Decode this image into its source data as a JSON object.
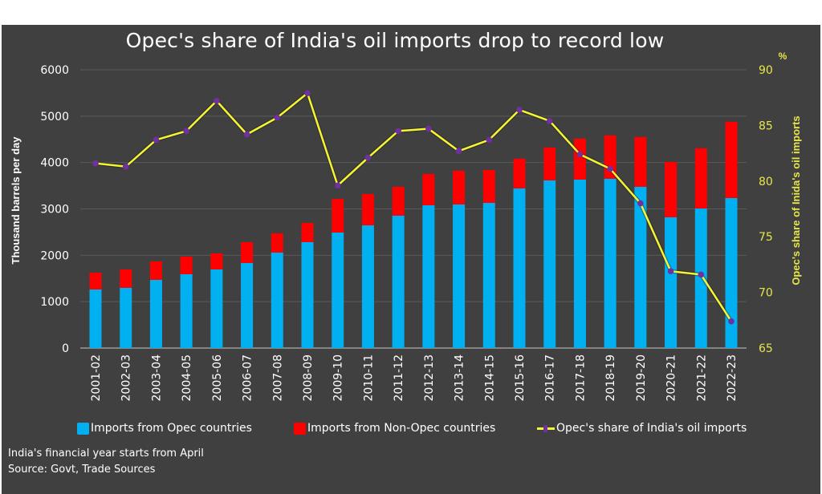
{
  "chart_data": {
    "type": "bar+line",
    "title": "Opec's share of India's oil imports drop to record low",
    "categories": [
      "2001-02",
      "2002-03",
      "2003-04",
      "2004-05",
      "2005-06",
      "2006-07",
      "2007-08",
      "2008-09",
      "2009-10",
      "2010-11",
      "2011-12",
      "2012-13",
      "2013-14",
      "2014-15",
      "2015-16",
      "2016-17",
      "2017-18",
      "2018-19",
      "2019-20",
      "2020-21",
      "2021-22",
      "2022-23"
    ],
    "series": [
      {
        "name": "Imports from Opec countries",
        "type": "bar",
        "stack": "imports",
        "axis": "left",
        "color": "#00b0f0",
        "values": [
          1263,
          1298,
          1471,
          1592,
          1696,
          1834,
          2059,
          2284,
          2491,
          2647,
          2855,
          3080,
          3097,
          3131,
          3443,
          3616,
          3633,
          3651,
          3478,
          2820,
          3010,
          3235
        ]
      },
      {
        "name": "Imports from Non-Opec countries",
        "type": "bar",
        "stack": "imports",
        "axis": "left",
        "color": "#ff0000",
        "values": [
          363,
          398,
          398,
          380,
          346,
          450,
          415,
          415,
          727,
          675,
          623,
          674,
          727,
          710,
          640,
          709,
          883,
          934,
          1072,
          1194,
          1298,
          1644
        ]
      },
      {
        "name": "Opec's share of India's oil imports",
        "type": "line",
        "axis": "right",
        "color": "#f5f531",
        "marker_color": "#7030a0",
        "values": [
          81.6,
          81.3,
          83.7,
          84.5,
          87.2,
          84.2,
          85.7,
          87.9,
          79.6,
          82.1,
          84.5,
          84.7,
          82.7,
          83.7,
          86.4,
          85.4,
          82.4,
          81.1,
          78.0,
          71.9,
          71.6,
          67.4
        ]
      }
    ],
    "ylabel": "Thousand barrels per day",
    "ylim": [
      0,
      6000
    ],
    "yticks": [
      0,
      1000,
      2000,
      3000,
      4000,
      5000,
      6000
    ],
    "y2label": "Opec's share of Inida's oil imports",
    "y2unit": "%",
    "y2lim": [
      65,
      90
    ],
    "y2ticks": [
      65,
      70,
      75,
      80,
      85,
      90
    ],
    "grid": true,
    "legend_position": "bottom"
  },
  "notes": {
    "line1": "India's financial year starts from April",
    "line2": "Source: Govt, Trade Sources"
  }
}
